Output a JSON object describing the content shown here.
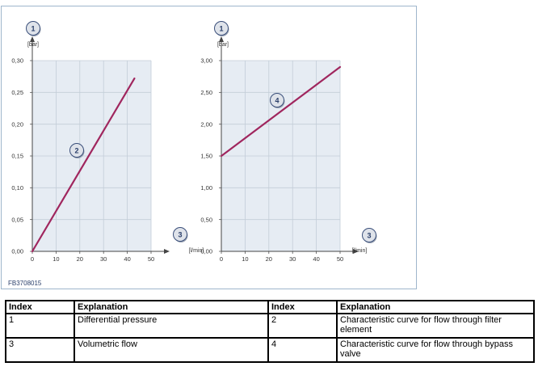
{
  "figure_id": "FB3708015",
  "chart_data": [
    {
      "type": "line",
      "xlabel": "[l/min]",
      "ylabel": "[bar]",
      "x_ticks": [
        "0",
        "10",
        "20",
        "30",
        "40",
        "50"
      ],
      "y_ticks": [
        "0,00",
        "0,05",
        "0,10",
        "0,15",
        "0,20",
        "0,25",
        "0,30"
      ],
      "xlim": [
        0,
        50
      ],
      "ylim": [
        0,
        0.3
      ],
      "grid": true,
      "series": [
        {
          "x": [
            0,
            43
          ],
          "y": [
            0,
            0.272
          ]
        }
      ],
      "callouts": {
        "y_axis": "1",
        "x_axis": "3",
        "curve": "2"
      }
    },
    {
      "type": "line",
      "xlabel": "[l/min]",
      "ylabel": "[bar]",
      "x_ticks": [
        "0",
        "10",
        "20",
        "30",
        "40",
        "50"
      ],
      "y_ticks": [
        "0,00",
        "0,50",
        "1,00",
        "1,50",
        "2,00",
        "2,50",
        "3,00"
      ],
      "xlim": [
        0,
        50
      ],
      "ylim": [
        0,
        3
      ],
      "grid": true,
      "series": [
        {
          "x": [
            0,
            50
          ],
          "y": [
            1.5,
            2.9
          ]
        }
      ],
      "callouts": {
        "y_axis": "1",
        "x_axis": "3",
        "curve": "4"
      }
    }
  ],
  "colors": {
    "curve": "#a0265e",
    "plot_bg": "#e6ecf3",
    "grid": "#c3cdd8",
    "badge_fill": "#dfe3ea",
    "badge_stroke": "#3a4f7a"
  },
  "legend_table": {
    "headers": [
      "Index",
      "Explanation",
      "Index",
      "Explanation"
    ],
    "rows": [
      [
        "1",
        "Differential pressure",
        "2",
        "Characteristic curve for flow through filter element"
      ],
      [
        "3",
        "Volumetric flow",
        "4",
        "Characteristic curve for flow through bypass valve"
      ]
    ]
  }
}
